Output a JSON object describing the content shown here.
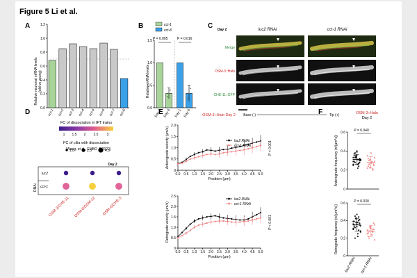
{
  "figure_title": "Figure 5 Li et al.",
  "colors": {
    "red": "#cc2222",
    "green": "#2e8b3a",
    "blue": "#2e86de",
    "pink": "#f08080",
    "grayBar": "#c9c9c9",
    "greenBar": "#a8d49a",
    "blueBar": "#3aa0e8"
  },
  "panels": {
    "A": {
      "label": "A",
      "ylabel_line1": "Relative neuronal mRNA levels",
      "ylabel_line2": "(old vs young)",
      "caption": "(Wang, et al., EMBO J, 2022)"
    },
    "B": {
      "label": "B",
      "ylabel": "Relative mRNA levels",
      "legend": [
        {
          "name": "cct-1",
          "color": "#a8d49a"
        },
        {
          "name": "cct-8",
          "color": "#3aa0e8"
        }
      ],
      "pvalues": [
        "P = 0.005",
        "P = 0.016"
      ]
    },
    "C": {
      "label": "C",
      "day": "Day 2",
      "col_titles": [
        "luc2 RNAi",
        "cct-1 RNAi"
      ],
      "row_labels": [
        "Merge",
        "OSM-3::Halo",
        "CHE-11::GFP"
      ],
      "base_label": "Base (-)",
      "tip_label": "Tip (+)"
    },
    "D": {
      "label": "D",
      "legend_title": "FC of dissociation in IFT trains",
      "colorbar_ticks": [
        "1",
        "1.5",
        "2",
        "2.5",
        "3"
      ],
      "size_title": "FC of cilia with dissociation",
      "size_entries": [
        "1.0",
        "2.0",
        "4.0"
      ],
      "day": "Day 2",
      "rnai_label": "RNAi",
      "rows": [
        "luc2",
        "cct-1"
      ],
      "columns": [
        "OSM-3/CHE-11",
        "OSM-6/OSM-12",
        "OSM-6/CHE-3"
      ]
    },
    "E": {
      "label": "E",
      "title": "OSM-3::Halo Day 2",
      "pvalue": "P < 0.001",
      "legend": [
        "luc2 RNAi",
        "cct-1 RNAi"
      ],
      "xlabel": "Position (μm)"
    },
    "F": {
      "label": "F",
      "title_line1": "OSM-3::Halo",
      "title_line2": "Day 2",
      "pvalues": [
        "P = 0.040",
        "P = 0.030"
      ],
      "categories": [
        "luc2 RNAi",
        "cct-1 RNAi"
      ]
    }
  },
  "chart_data": [
    {
      "id": "A",
      "type": "bar",
      "categories": [
        "cct-1",
        "cct-2",
        "cct-3",
        "cct-4",
        "cct-5",
        "cct-6",
        "cct-7",
        "cct-8"
      ],
      "values": [
        0.68,
        0.85,
        0.92,
        0.88,
        0.85,
        0.93,
        0.84,
        0.42
      ],
      "ylim": [
        0,
        1.2
      ],
      "yticks": [
        0,
        0.2,
        0.4,
        0.6,
        0.8,
        1.0,
        1.2
      ],
      "reference_line": 0.7
    },
    {
      "id": "B",
      "type": "bar",
      "categories": [
        "Day 1",
        "Day 6",
        "Day 1",
        "Day 6"
      ],
      "values": [
        1.0,
        0.32,
        1.0,
        0.32
      ],
      "errors": [
        0.0,
        0.12,
        0.0,
        0.18
      ],
      "ylim": [
        0,
        1.5
      ],
      "yticks": [
        0,
        0.5,
        1.0,
        1.5
      ]
    },
    {
      "id": "D",
      "type": "scatter",
      "rows": [
        "luc2",
        "cct-1"
      ],
      "columns": [
        "OSM-3/CHE-11",
        "OSM-6/OSM-12",
        "OSM-6/CHE-3"
      ],
      "fold_change": [
        [
          1.0,
          1.0,
          1.0
        ],
        [
          2.5,
          3.0,
          2.5
        ]
      ],
      "cilia_fc": [
        [
          1.0,
          1.0,
          1.0
        ],
        [
          2.0,
          2.0,
          2.0
        ]
      ]
    },
    {
      "id": "E1",
      "type": "line",
      "ylabel": "Anterograde velocity (μm/s)",
      "xlabel": "Position (μm)",
      "x": [
        0,
        0.25,
        0.5,
        0.75,
        1.0,
        1.25,
        1.5,
        1.75,
        2.0,
        2.25,
        2.5,
        2.75,
        3.0,
        3.25,
        3.5,
        3.75,
        4.0,
        4.25,
        4.5,
        4.75,
        5.0
      ],
      "xticks": [
        "0.0",
        "0.5",
        "1.0",
        "1.5",
        "2.0",
        "2.5",
        "3.0",
        "3.5",
        "4.0",
        "4.5",
        "5.0"
      ],
      "ylim": [
        0,
        2.0
      ],
      "yticks": [
        "0",
        "0.5",
        "1.0",
        "1.5",
        "2.0"
      ],
      "series": [
        {
          "name": "luc2 RNAi",
          "values": [
            0.3,
            0.35,
            0.48,
            0.62,
            0.7,
            0.78,
            0.82,
            0.9,
            0.88,
            0.85,
            0.88,
            0.92,
            0.93,
            0.98,
            1.0,
            1.05,
            1.1,
            1.15,
            1.2,
            1.25,
            1.3
          ]
        },
        {
          "name": "cct-1 RNAi",
          "values": [
            0.28,
            0.32,
            0.4,
            0.5,
            0.55,
            0.6,
            0.65,
            0.7,
            0.72,
            0.7,
            0.72,
            0.78,
            0.8,
            0.82,
            0.85,
            0.88,
            0.9,
            0.95,
            1.0,
            1.05,
            1.1
          ]
        }
      ]
    },
    {
      "id": "E2",
      "type": "line",
      "ylabel": "Retrograde velocity (μm/s)",
      "xlabel": "Position (μm)",
      "x": [
        0,
        0.25,
        0.5,
        0.75,
        1.0,
        1.25,
        1.5,
        1.75,
        2.0,
        2.25,
        2.5,
        2.75,
        3.0,
        3.25,
        3.5,
        3.75,
        4.0,
        4.25,
        4.5,
        4.75,
        5.0
      ],
      "xticks": [
        "0.0",
        "0.5",
        "1.0",
        "1.5",
        "2.0",
        "2.5",
        "3.0",
        "3.5",
        "4.0",
        "4.5",
        "5.0"
      ],
      "ylim": [
        0,
        2.5
      ],
      "yticks": [
        "0",
        "0.5",
        "1.0",
        "1.5",
        "2.0",
        "2.5"
      ],
      "series": [
        {
          "name": "luc2 RNAi",
          "values": [
            0.55,
            0.75,
            0.95,
            1.15,
            1.3,
            1.4,
            1.45,
            1.5,
            1.52,
            1.55,
            1.5,
            1.45,
            1.42,
            1.4,
            1.38,
            1.35,
            1.35,
            1.4,
            1.5,
            1.6,
            1.7
          ]
        },
        {
          "name": "cct-1 RNAi",
          "values": [
            0.5,
            0.6,
            0.72,
            0.85,
            1.0,
            1.1,
            1.15,
            1.2,
            1.25,
            1.28,
            1.3,
            1.3,
            1.28,
            1.25,
            1.25,
            1.25,
            1.28,
            1.3,
            1.35,
            1.4,
            1.45
          ]
        }
      ]
    },
    {
      "id": "F1",
      "type": "scatter",
      "ylabel": "Anterograde frequency (n/(μm*s))",
      "ylim": [
        0,
        0.6
      ],
      "yticks": [
        "0",
        "0.2",
        "0.4",
        "0.6"
      ],
      "categories": [
        "luc2 RNAi",
        "cct-1 RNAi"
      ],
      "groups": [
        [
          0.25,
          0.28,
          0.31,
          0.33,
          0.35,
          0.3,
          0.27,
          0.36,
          0.38,
          0.29,
          0.32,
          0.26,
          0.34,
          0.37,
          0.31,
          0.24,
          0.4,
          0.28,
          0.33,
          0.3,
          0.22,
          0.35,
          0.29,
          0.31,
          0.27,
          0.39,
          0.33,
          0.26
        ],
        [
          0.22,
          0.26,
          0.29,
          0.31,
          0.24,
          0.33,
          0.2,
          0.27,
          0.3,
          0.35,
          0.25,
          0.28,
          0.23,
          0.32,
          0.29,
          0.21,
          0.38,
          0.26
        ]
      ],
      "mean": [
        0.31,
        0.28
      ],
      "sd": [
        0.05,
        0.06
      ]
    },
    {
      "id": "F2",
      "type": "scatter",
      "ylabel": "Retrograde frequency (n/(μm*s))",
      "ylim": [
        0,
        0.6
      ],
      "yticks": [
        "0",
        "0.2",
        "0.4",
        "0.6"
      ],
      "categories": [
        "luc2 RNAi",
        "cct-1 RNAi"
      ],
      "groups": [
        [
          0.3,
          0.35,
          0.38,
          0.42,
          0.33,
          0.28,
          0.4,
          0.36,
          0.45,
          0.31,
          0.37,
          0.25,
          0.43,
          0.39,
          0.34,
          0.29,
          0.47,
          0.32,
          0.36,
          0.41,
          0.22,
          0.38,
          0.35,
          0.27,
          0.44,
          0.33,
          0.2,
          0.39
        ],
        [
          0.25,
          0.3,
          0.28,
          0.33,
          0.22,
          0.35,
          0.27,
          0.31,
          0.2,
          0.29,
          0.37,
          0.24,
          0.32,
          0.26,
          0.18,
          0.3,
          0.34,
          0.28
        ]
      ],
      "mean": [
        0.35,
        0.28
      ],
      "sd": [
        0.07,
        0.06
      ]
    }
  ]
}
